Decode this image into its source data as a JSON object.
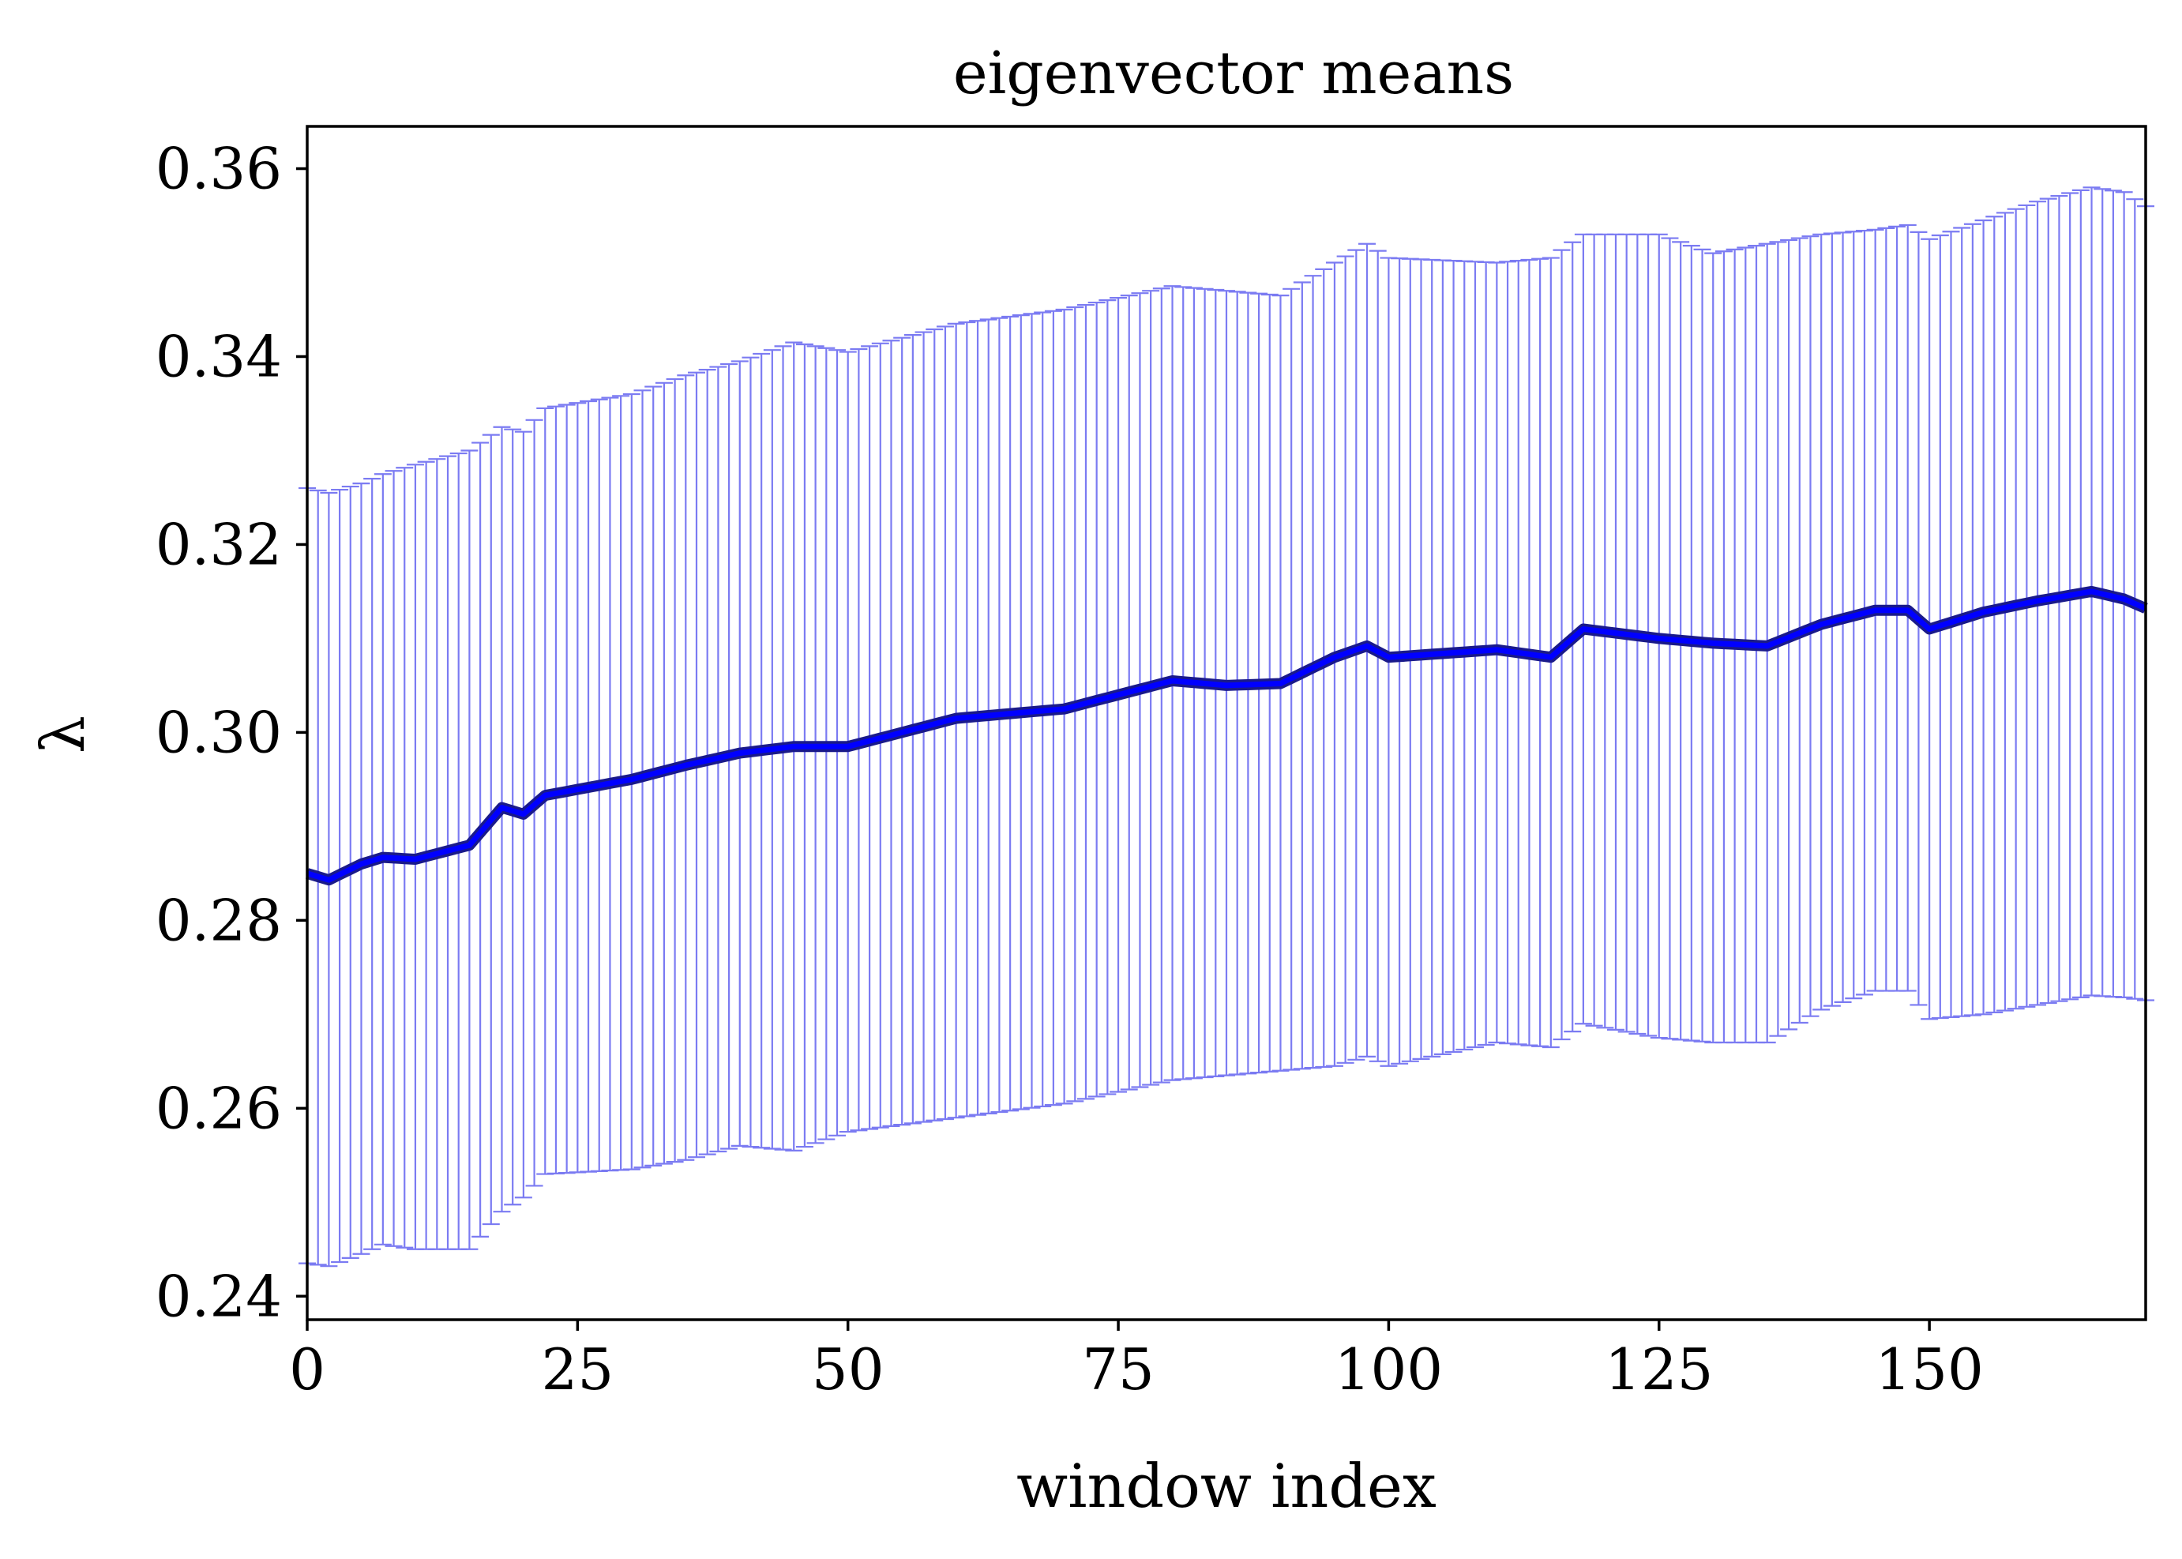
{
  "chart_data": {
    "type": "line",
    "title": "eigenvector means",
    "xlabel": "window index",
    "ylabel": "λ",
    "xlim": [
      0,
      170
    ],
    "ylim": [
      0.2375,
      0.3645
    ],
    "xticks": [
      0,
      25,
      50,
      75,
      100,
      125,
      150
    ],
    "yticks": [
      0.24,
      0.26,
      0.28,
      0.3,
      0.32,
      0.34,
      0.36
    ],
    "xtick_labels": [
      "0",
      "25",
      "50",
      "75",
      "100",
      "125",
      "150"
    ],
    "ytick_labels": [
      "0.24",
      "0.26",
      "0.28",
      "0.30",
      "0.32",
      "0.34",
      "0.36"
    ],
    "grid": false,
    "legend": "none",
    "colors": {
      "line": "#0000ff",
      "line_outline": "#1a1a8a",
      "errorbar": "#7b7bf2"
    },
    "series": [
      {
        "style": "line with error bars",
        "key_points": {
          "x": [
            0,
            2,
            5,
            7,
            10,
            15,
            18,
            20,
            22,
            30,
            35,
            40,
            45,
            50,
            60,
            70,
            80,
            85,
            90,
            95,
            98,
            100,
            110,
            115,
            118,
            125,
            130,
            135,
            140,
            145,
            148,
            150,
            155,
            160,
            165,
            168,
            170
          ],
          "mean": [
            0.285,
            0.2843,
            0.286,
            0.2867,
            0.2865,
            0.288,
            0.292,
            0.2913,
            0.2933,
            0.295,
            0.2965,
            0.2978,
            0.2985,
            0.2985,
            0.3015,
            0.3025,
            0.3055,
            0.305,
            0.3052,
            0.308,
            0.3092,
            0.308,
            0.3088,
            0.308,
            0.311,
            0.31,
            0.3095,
            0.3092,
            0.3115,
            0.313,
            0.313,
            0.311,
            0.3128,
            0.314,
            0.315,
            0.3142,
            0.3132
          ],
          "upper": [
            0.326,
            0.3255,
            0.3265,
            0.3275,
            0.3285,
            0.33,
            0.3325,
            0.332,
            0.3345,
            0.336,
            0.338,
            0.3395,
            0.3415,
            0.3405,
            0.3435,
            0.345,
            0.3475,
            0.347,
            0.3465,
            0.35,
            0.352,
            0.3505,
            0.35,
            0.3505,
            0.353,
            0.353,
            0.351,
            0.352,
            0.353,
            0.3535,
            0.354,
            0.3525,
            0.3545,
            0.3565,
            0.358,
            0.3575,
            0.356
          ],
          "lower": [
            0.2435,
            0.2432,
            0.2445,
            0.2455,
            0.245,
            0.245,
            0.249,
            0.2505,
            0.253,
            0.2535,
            0.2545,
            0.256,
            0.2555,
            0.2575,
            0.259,
            0.2605,
            0.263,
            0.2635,
            0.264,
            0.2645,
            0.2655,
            0.2645,
            0.267,
            0.2665,
            0.269,
            0.2675,
            0.267,
            0.267,
            0.2705,
            0.2725,
            0.2725,
            0.2695,
            0.27,
            0.271,
            0.272,
            0.2718,
            0.2715
          ]
        }
      }
    ]
  }
}
